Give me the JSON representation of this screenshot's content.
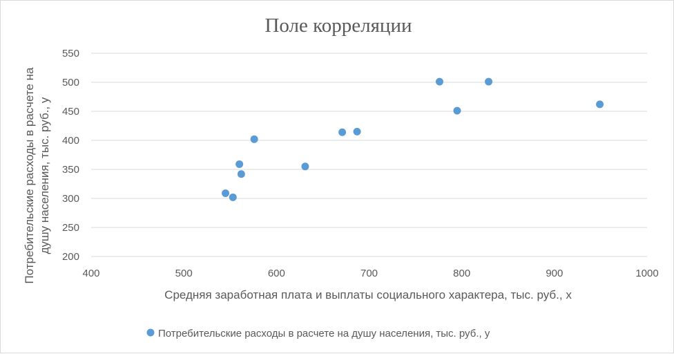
{
  "chart_data": {
    "type": "scatter",
    "title": "Поле корреляции",
    "xlabel": "Средняя заработная плата и выплаты социального характера, тыс. руб., х",
    "ylabel_lines": [
      "Потребительские расходы в расчете на",
      "душу населения, тыс. руб., у"
    ],
    "xlim": [
      400,
      1000
    ],
    "ylim": [
      200,
      550
    ],
    "xticks": [
      400,
      500,
      600,
      700,
      800,
      900,
      1000
    ],
    "yticks": [
      200,
      250,
      300,
      350,
      400,
      450,
      500,
      550
    ],
    "grid": true,
    "legend_position": "bottom",
    "series": [
      {
        "name": "Потребительские расходы в расчете на душу населения, тыс. руб., у",
        "color": "#5b9bd5",
        "points": [
          {
            "x": 545,
            "y": 309
          },
          {
            "x": 553,
            "y": 302
          },
          {
            "x": 560,
            "y": 359
          },
          {
            "x": 562,
            "y": 342
          },
          {
            "x": 576,
            "y": 402
          },
          {
            "x": 631,
            "y": 355
          },
          {
            "x": 671,
            "y": 414
          },
          {
            "x": 687,
            "y": 415
          },
          {
            "x": 776,
            "y": 501
          },
          {
            "x": 795,
            "y": 451
          },
          {
            "x": 829,
            "y": 501
          },
          {
            "x": 949,
            "y": 462
          }
        ]
      }
    ]
  }
}
